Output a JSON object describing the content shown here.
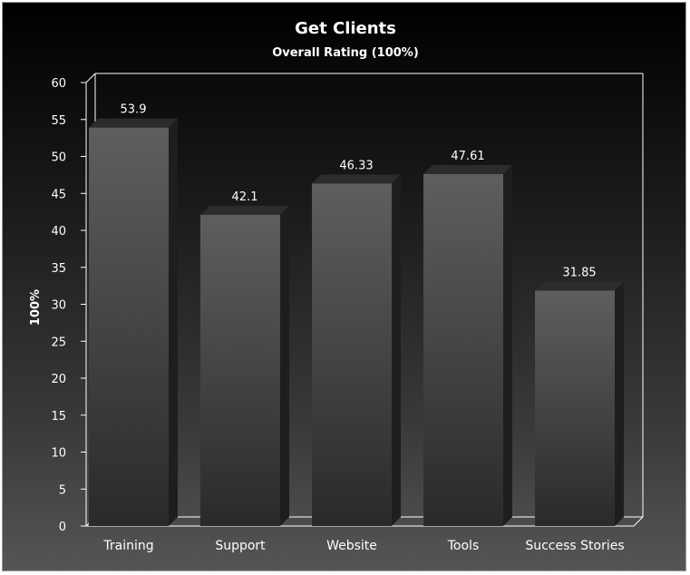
{
  "chart_data": {
    "type": "bar",
    "title": "Get Clients",
    "subtitle": "Overall Rating (100%)",
    "xlabel": "",
    "ylabel": "100%",
    "categories": [
      "Training",
      "Support",
      "Website",
      "Tools",
      "Success Stories"
    ],
    "values": [
      53.9,
      42.1,
      46.33,
      47.61,
      31.85
    ],
    "data_labels": [
      "53.9",
      "42.1",
      "46.33",
      "47.61",
      "31.85"
    ],
    "ylim": [
      0,
      60
    ],
    "yticks": [
      0,
      5,
      10,
      15,
      20,
      25,
      30,
      35,
      40,
      45,
      50,
      55,
      60
    ],
    "grid": false,
    "legend": "none",
    "style": "3d"
  },
  "colors": {
    "background_top": "#000000",
    "background_bottom": "#555555",
    "bar_top": "#5e5e5e",
    "bar_bottom": "#2a2a2a",
    "bar_side": "#1e1e1e",
    "bar_cap": "#2c2c2c",
    "plot_border": "#ffffff",
    "text": "#ffffff"
  }
}
